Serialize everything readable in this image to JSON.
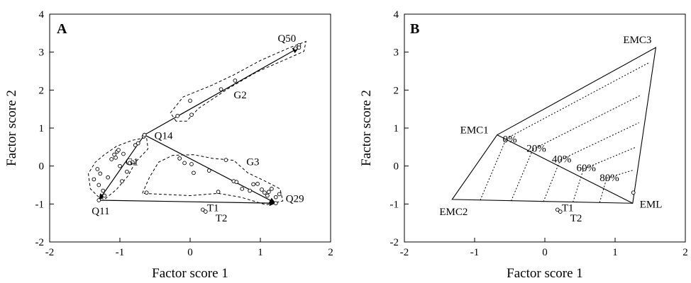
{
  "chart_data": [
    {
      "type": "scatter",
      "panel": "A",
      "xlabel": "Factor score 1",
      "ylabel": "Factor score 2",
      "xlim": [
        -2,
        2
      ],
      "ylim": [
        -2,
        4
      ],
      "xticks": [
        -2,
        -1,
        0,
        1,
        2
      ],
      "yticks": [
        -2,
        -1,
        0,
        1,
        2,
        3,
        4
      ],
      "grid": false,
      "points": [
        [
          -1.37,
          -0.35
        ],
        [
          -1.32,
          -0.08
        ],
        [
          -1.28,
          -0.2
        ],
        [
          -1.3,
          -0.5
        ],
        [
          -1.24,
          -0.65
        ],
        [
          -1.22,
          -0.78
        ],
        [
          -1.17,
          -0.3
        ],
        [
          -1.12,
          0.18
        ],
        [
          -1.08,
          0.3
        ],
        [
          -1.06,
          0.22
        ],
        [
          -1.04,
          0.38
        ],
        [
          -1.02,
          0.42
        ],
        [
          -1.0,
          0.0
        ],
        [
          -0.97,
          -0.4
        ],
        [
          -0.95,
          0.32
        ],
        [
          -0.9,
          -0.15
        ],
        [
          -0.86,
          0.08
        ],
        [
          -0.82,
          0.1
        ],
        [
          -0.78,
          0.55
        ],
        [
          -0.74,
          0.6
        ],
        [
          -0.66,
          0.78
        ],
        [
          -0.18,
          1.32
        ],
        [
          0.02,
          1.35
        ],
        [
          0.0,
          1.72
        ],
        [
          0.44,
          2.02
        ],
        [
          0.64,
          2.25
        ],
        [
          1.5,
          3.1
        ],
        [
          1.55,
          3.18
        ],
        [
          -0.15,
          0.2
        ],
        [
          -0.08,
          0.08
        ],
        [
          0.02,
          0.05
        ],
        [
          0.05,
          -0.18
        ],
        [
          0.27,
          -0.12
        ],
        [
          0.51,
          0.16
        ],
        [
          0.62,
          -0.4
        ],
        [
          0.66,
          -0.42
        ],
        [
          0.74,
          -0.6
        ],
        [
          0.85,
          -0.65
        ],
        [
          0.9,
          -0.48
        ],
        [
          0.96,
          -0.47
        ],
        [
          1.02,
          -0.62
        ],
        [
          1.06,
          -0.7
        ],
        [
          1.1,
          -0.78
        ],
        [
          1.12,
          -0.68
        ],
        [
          1.16,
          -0.6
        ],
        [
          1.22,
          -0.82
        ],
        [
          -0.62,
          -0.7
        ],
        [
          0.4,
          -0.68
        ],
        [
          1.27,
          -0.74
        ]
      ],
      "groups": [
        {
          "name": "G1",
          "outline": [
            [
              -1.3,
              -0.82
            ],
            [
              -1.42,
              -0.6
            ],
            [
              -1.45,
              -0.2
            ],
            [
              -1.35,
              0.1
            ],
            [
              -1.22,
              0.3
            ],
            [
              -1.05,
              0.52
            ],
            [
              -0.82,
              0.68
            ],
            [
              -0.62,
              0.75
            ],
            [
              -0.6,
              0.45
            ],
            [
              -0.78,
              0.1
            ],
            [
              -0.88,
              -0.25
            ],
            [
              -1.05,
              -0.62
            ],
            [
              -1.22,
              -0.88
            ]
          ]
        },
        {
          "name": "G2",
          "outline": [
            [
              -0.2,
              1.18
            ],
            [
              -0.28,
              1.4
            ],
            [
              -0.1,
              1.82
            ],
            [
              0.3,
              2.12
            ],
            [
              0.62,
              2.4
            ],
            [
              1.0,
              2.78
            ],
            [
              1.42,
              3.12
            ],
            [
              1.65,
              3.28
            ],
            [
              1.62,
              3.02
            ],
            [
              1.35,
              2.8
            ],
            [
              0.95,
              2.48
            ],
            [
              0.55,
              2.05
            ],
            [
              0.12,
              1.52
            ],
            [
              -0.05,
              1.18
            ]
          ]
        },
        {
          "name": "G3",
          "outline": [
            [
              -0.68,
              -0.72
            ],
            [
              -0.58,
              -0.3
            ],
            [
              -0.45,
              0.1
            ],
            [
              -0.25,
              0.28
            ],
            [
              0.05,
              0.3
            ],
            [
              0.32,
              0.2
            ],
            [
              0.62,
              0.15
            ],
            [
              0.82,
              -0.18
            ],
            [
              1.05,
              -0.38
            ],
            [
              1.28,
              -0.6
            ],
            [
              1.32,
              -0.92
            ],
            [
              1.08,
              -1.02
            ],
            [
              0.72,
              -0.82
            ],
            [
              0.4,
              -0.72
            ],
            [
              0.0,
              -0.78
            ]
          ]
        }
      ],
      "vectors": [
        {
          "from": "Q14",
          "to": "Q50"
        },
        {
          "from": "Q14",
          "to": "Q11"
        },
        {
          "from": "Q14",
          "to": "Q29"
        },
        {
          "from": "Q11",
          "to": "Q29"
        }
      ],
      "endmembers": [
        {
          "name": "Q50",
          "x": 1.55,
          "y": 3.12
        },
        {
          "name": "Q14",
          "x": -0.65,
          "y": 0.82
        },
        {
          "name": "Q11",
          "x": -1.3,
          "y": -0.9
        },
        {
          "name": "Q29",
          "x": 1.22,
          "y": -0.98
        }
      ],
      "samples": [
        {
          "name": "T1",
          "x": 0.18,
          "y": -1.15
        },
        {
          "name": "T2",
          "x": 0.22,
          "y": -1.2
        }
      ],
      "labels": {
        "Q50": "Q50",
        "Q14": "Q14",
        "Q11": "Q11",
        "Q29": "Q29",
        "G1": "G1",
        "G2": "G2",
        "G3": "G3",
        "T1": "T1",
        "T2": "T2"
      }
    },
    {
      "type": "scatter",
      "panel": "B",
      "xlabel": "Factor score 1",
      "ylabel": "Factor score 2",
      "xlim": [
        -2,
        2
      ],
      "ylim": [
        -2,
        4
      ],
      "xticks": [
        -2,
        -1,
        0,
        1,
        2
      ],
      "yticks": [
        -2,
        -1,
        0,
        1,
        2,
        3,
        4
      ],
      "grid": false,
      "endmembers": [
        {
          "name": "EMC1",
          "x": -0.68,
          "y": 0.82
        },
        {
          "name": "EMC2",
          "x": -1.32,
          "y": -0.88
        },
        {
          "name": "EMC3",
          "x": 1.58,
          "y": 3.12
        },
        {
          "name": "EML",
          "x": 1.25,
          "y": -0.98
        }
      ],
      "mixing_line": {
        "from": "EMC1",
        "to": "EML"
      },
      "percent_labels": [
        "0%",
        "20%",
        "40%",
        "60%",
        "80%"
      ],
      "dotted_lines": [
        [
          [
            -0.55,
            0.72
          ],
          [
            1.48,
            2.72
          ]
        ],
        [
          [
            -0.17,
            0.44
          ],
          [
            1.37,
            1.87
          ]
        ],
        [
          [
            0.22,
            0.16
          ],
          [
            1.34,
            1.14
          ]
        ],
        [
          [
            0.55,
            -0.08
          ],
          [
            1.3,
            0.5
          ]
        ],
        [
          [
            0.88,
            -0.32
          ],
          [
            1.27,
            -0.1
          ]
        ],
        [
          [
            -0.92,
            -0.9
          ],
          [
            -0.55,
            0.72
          ]
        ],
        [
          [
            -0.48,
            -0.92
          ],
          [
            -0.17,
            0.44
          ]
        ],
        [
          [
            -0.02,
            -0.94
          ],
          [
            0.22,
            0.16
          ]
        ],
        [
          [
            0.4,
            -0.95
          ],
          [
            0.55,
            -0.08
          ]
        ],
        [
          [
            0.78,
            -0.96
          ],
          [
            0.88,
            -0.32
          ]
        ]
      ],
      "samples": [
        {
          "name": "T1",
          "x": 0.18,
          "y": -1.15
        },
        {
          "name": "T2",
          "x": 0.22,
          "y": -1.2
        },
        {
          "name": "",
          "x": 1.26,
          "y": -0.7
        }
      ],
      "labels": {
        "EMC1": "EMC1",
        "EMC2": "EMC2",
        "EMC3": "EMC3",
        "EML": "EML",
        "T1": "T1",
        "T2": "T2"
      }
    }
  ]
}
